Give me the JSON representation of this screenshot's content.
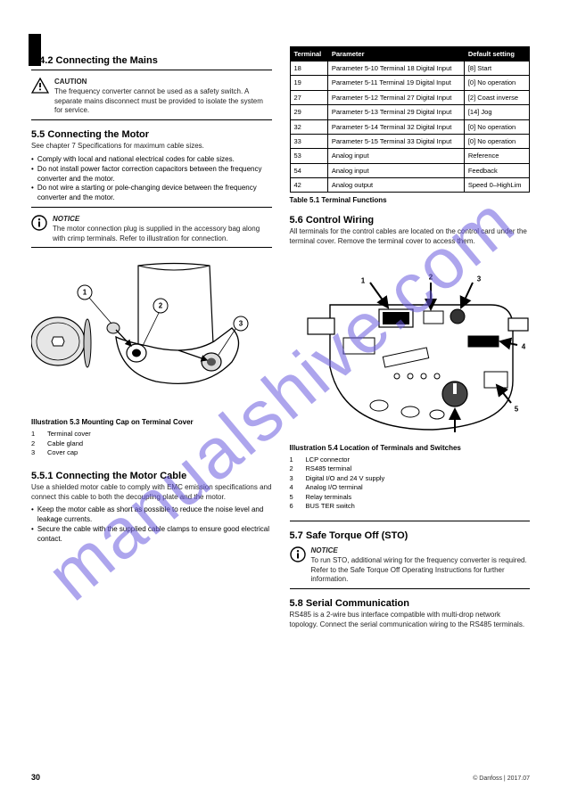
{
  "watermark_text": "manualshive.com",
  "lang_label": "en",
  "page_number": "30",
  "footer_text": "© Danfoss | 2017.07",
  "left": {
    "heading_num": "5.4.2",
    "heading": "Connecting the Mains",
    "caution_title": "CAUTION",
    "caution_body": "The frequency converter cannot be used as a safety switch. A separate mains disconnect must be provided to isolate the system for service.",
    "section2_num": "5.5",
    "section2": "Connecting the Motor",
    "section2_body1": "See chapter 7 Specifications for maximum cable sizes.",
    "section2_bullets": [
      "Comply with local and national electrical codes for cable sizes.",
      "Do not install power factor correction capacitors between the frequency converter and the motor.",
      "Do not wire a starting or pole-changing device between the frequency converter and the motor."
    ],
    "info_note": "The motor connection plug is supplied in the accessory bag along with crimp terminals. Refer to illustration for connection.",
    "fig_num": "5.3",
    "fig_caption": "Mounting Cap on Terminal Cover",
    "legend": [
      {
        "n": "1",
        "t": "Terminal cover"
      },
      {
        "n": "2",
        "t": "Cable gland"
      },
      {
        "n": "3",
        "t": "Cover cap"
      }
    ],
    "section3_num": "5.5.1",
    "section3": "Connecting the Motor Cable",
    "section3_body": "Use a shielded motor cable to comply with EMC emission specifications and connect this cable to both the decoupling plate and the motor.",
    "section3_bullets": [
      "Keep the motor cable as short as possible to reduce the noise level and leakage currents.",
      "Secure the cable with the supplied cable clamps to ensure good electrical contact."
    ]
  },
  "right": {
    "table": {
      "headers": [
        "Terminal",
        "Parameter",
        "Default setting"
      ],
      "rows": [
        [
          "18",
          "Parameter 5-10 Terminal 18 Digital Input",
          "[8] Start"
        ],
        [
          "19",
          "Parameter 5-11 Terminal 19 Digital Input",
          "[0] No operation"
        ],
        [
          "27",
          "Parameter 5-12 Terminal 27 Digital Input",
          "[2] Coast inverse"
        ],
        [
          "29",
          "Parameter 5-13 Terminal 29 Digital Input",
          "[14] Jog"
        ],
        [
          "32",
          "Parameter 5-14 Terminal 32 Digital Input",
          "[0] No operation"
        ],
        [
          "33",
          "Parameter 5-15 Terminal 33 Digital Input",
          "[0] No operation"
        ],
        [
          "53",
          "Analog input",
          "Reference"
        ],
        [
          "54",
          "Analog input",
          "Feedback"
        ],
        [
          "42",
          "Analog output",
          "Speed 0–HighLim"
        ]
      ]
    },
    "table_caption_num": "5.1",
    "table_caption": "Terminal Functions",
    "section_num": "5.6",
    "section": "Control Wiring",
    "section_body": "All terminals for the control cables are located on the control card under the terminal cover. Remove the terminal cover to access them.",
    "fig_num": "5.4",
    "fig_caption": "Location of Terminals and Switches",
    "legend": [
      {
        "n": "1",
        "t": "LCP connector"
      },
      {
        "n": "2",
        "t": "RS485 terminal"
      },
      {
        "n": "3",
        "t": "Digital I/O and 24 V supply"
      },
      {
        "n": "4",
        "t": "Analog I/O terminal"
      },
      {
        "n": "5",
        "t": "Relay terminals"
      },
      {
        "n": "6",
        "t": "BUS TER switch"
      }
    ],
    "section2_num": "5.7",
    "section2": "Safe Torque Off (STO)",
    "info_note": "To run STO, additional wiring for the frequency converter is required. Refer to the Safe Torque Off Operating Instructions for further information.",
    "section3_num": "5.8",
    "section3": "Serial Communication",
    "section3_body": "RS485 is a 2-wire bus interface compatible with multi-drop network topology. Connect the serial communication wiring to the RS485 terminals."
  },
  "colors": {
    "watermark": "#6b5ce0",
    "text": "#000000",
    "header_bg": "#000000",
    "header_fg": "#ffffff"
  }
}
